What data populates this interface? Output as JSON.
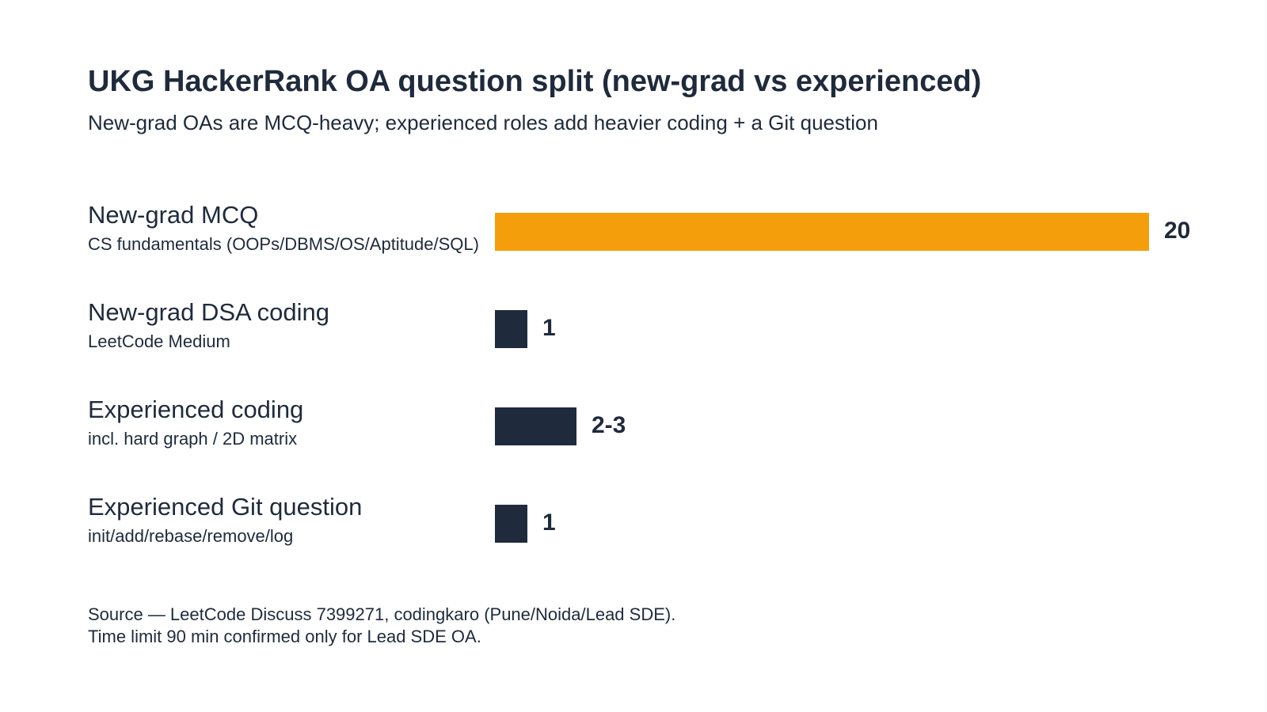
{
  "chart_data": {
    "type": "bar",
    "orientation": "horizontal",
    "title": "UKG HackerRank OA question split (new-grad vs experienced)",
    "subtitle": "New-grad OAs are MCQ-heavy; experienced roles add heavier coding + a Git question",
    "xlim": [
      0,
      20
    ],
    "grid": false,
    "categories": [
      {
        "label": "New-grad MCQ",
        "sublabel": "CS fundamentals (OOPs/DBMS/OS/Aptitude/SQL)",
        "value": 20,
        "value_label": "20",
        "highlight": true
      },
      {
        "label": "New-grad DSA coding",
        "sublabel": "LeetCode Medium",
        "value": 1,
        "value_label": "1",
        "highlight": false
      },
      {
        "label": "Experienced coding",
        "sublabel": "incl. hard graph / 2D matrix",
        "value": 2.5,
        "value_label": "2-3",
        "highlight": false
      },
      {
        "label": "Experienced Git question",
        "sublabel": "init/add/rebase/remove/log",
        "value": 1,
        "value_label": "1",
        "highlight": false
      }
    ],
    "colors": {
      "highlight": "#f59e0b",
      "default": "#1f2a3c"
    }
  },
  "footer": {
    "line1": "Source — LeetCode Discuss 7399271, codingkaro (Pune/Noida/Lead SDE).",
    "line2": "Time limit 90 min confirmed only for Lead SDE OA."
  }
}
